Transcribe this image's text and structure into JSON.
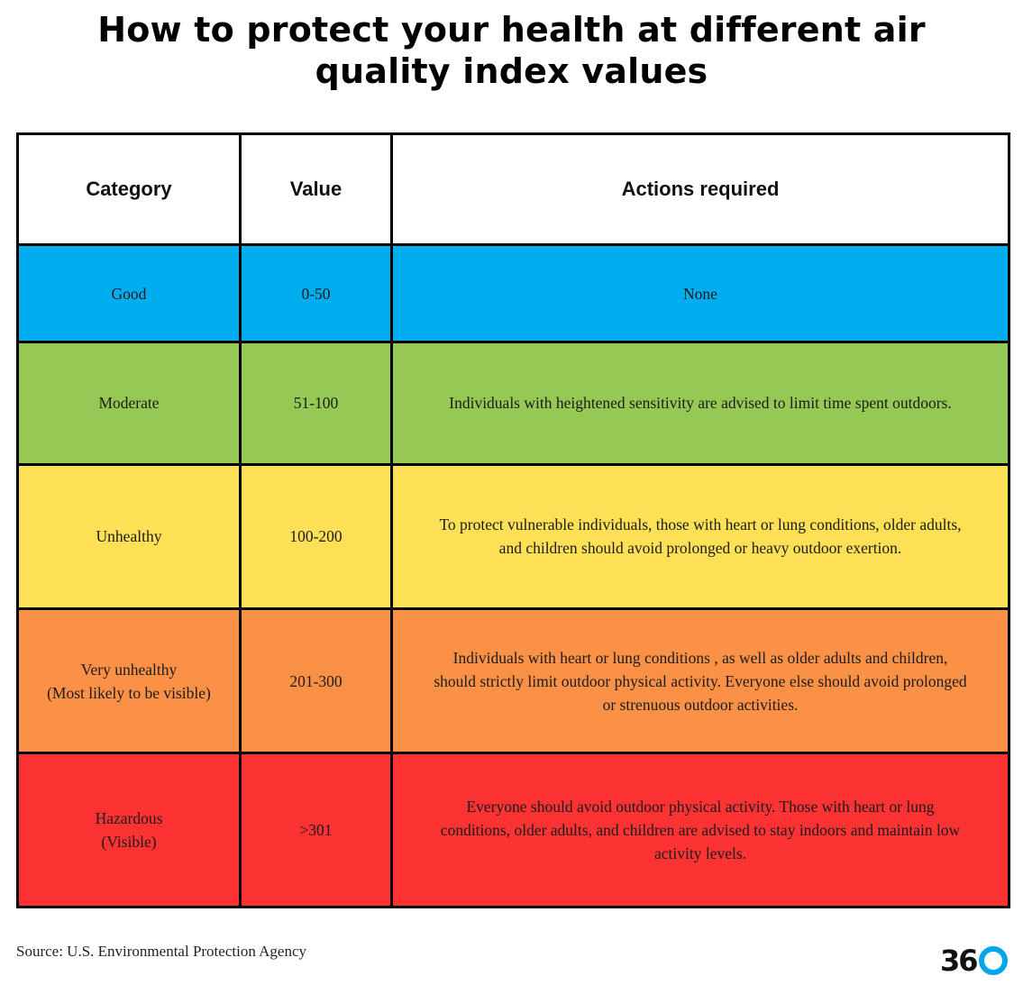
{
  "title": {
    "line1": "How to protect your health at different air",
    "line2": "quality index values"
  },
  "table": {
    "headers": {
      "category": "Category",
      "value": "Value",
      "actions": "Actions required"
    },
    "rows": [
      {
        "color": "#00aeef",
        "category": [
          "Good"
        ],
        "value": "0-50",
        "actions": [
          "None"
        ],
        "height": "good"
      },
      {
        "color": "#96c953",
        "category": [
          "Moderate"
        ],
        "value": "51-100",
        "actions": [
          "Individuals with heightened sensitivity are advised to limit time spent outdoors."
        ]
      },
      {
        "color": "#fde055",
        "category": [
          "Unhealthy"
        ],
        "value": "100-200",
        "actions": [
          "To protect vulnerable individuals, those with heart or lung conditions, older adults,",
          "and children should avoid prolonged or heavy outdoor exertion."
        ]
      },
      {
        "color": "#fb9047",
        "category": [
          "Very unhealthy",
          "(Most likely to be visible)"
        ],
        "value": "201-300",
        "actions": [
          "Individuals with heart or lung conditions , as well as older adults and children,",
          "should strictly limit outdoor physical activity. Everyone else should avoid prolonged",
          "or strenuous outdoor activities."
        ]
      },
      {
        "color": "#fd3232",
        "category": [
          "Hazardous",
          "(Visible)"
        ],
        "value": ">301",
        "actions": [
          "Everyone should avoid outdoor physical activity. Those with heart or lung",
          "conditions, older adults, and children are advised to stay indoors and maintain low",
          "activity levels."
        ]
      }
    ]
  },
  "footer": {
    "source": "Source: U.S. Environmental Protection Agency",
    "logo_text": "36",
    "logo_icon": "o-ring-icon",
    "logo_accent": "#00a6e6"
  }
}
